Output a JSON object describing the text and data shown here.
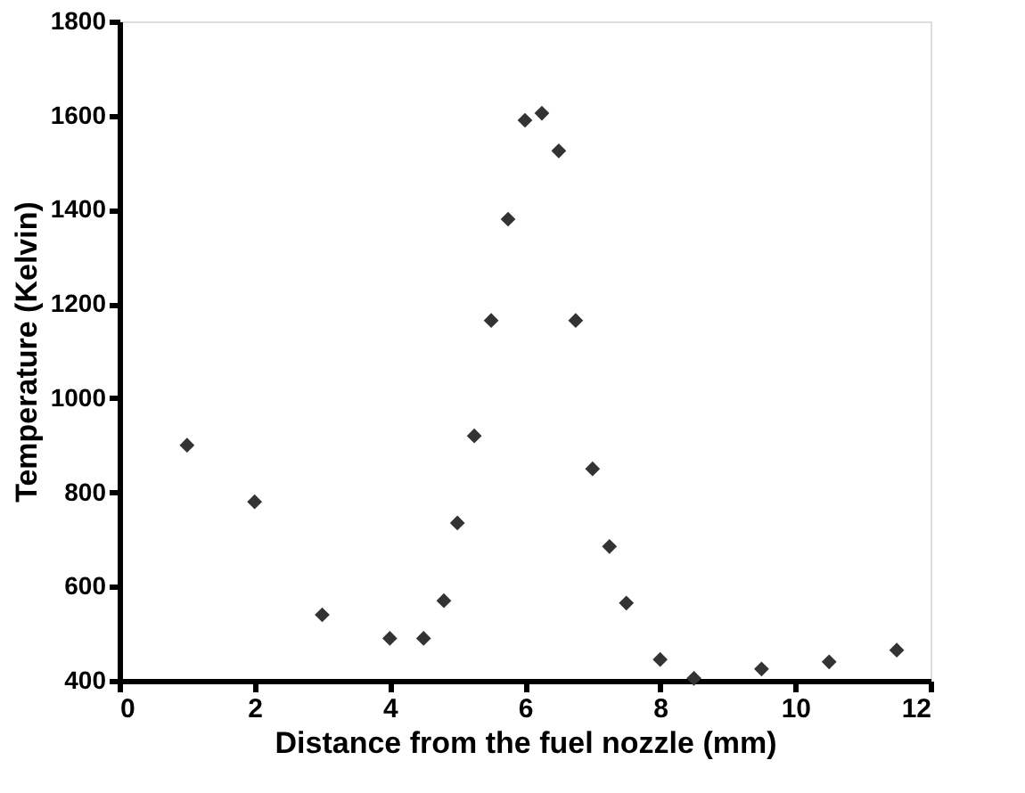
{
  "chart_data": {
    "type": "scatter",
    "xlabel": "Distance from the fuel nozzle (mm)",
    "ylabel": "Temperature (Kelvin)",
    "x": [
      1,
      2,
      3,
      4,
      4.5,
      4.8,
      5,
      5.25,
      5.5,
      5.75,
      6,
      6.25,
      6.5,
      6.75,
      7,
      7.25,
      7.5,
      8,
      8.5,
      9.5,
      10.5,
      11.5
    ],
    "series": [
      {
        "color": "#333333",
        "values": [
          900,
          780,
          540,
          490,
          490,
          570,
          735,
          920,
          1165,
          1380,
          1590,
          1605,
          1525,
          1165,
          850,
          685,
          565,
          445,
          405,
          425,
          440,
          465
        ]
      }
    ],
    "xlim": [
      0,
      12
    ],
    "xticks": [
      0,
      2,
      4,
      6,
      8,
      10,
      12
    ],
    "ylim": [
      400,
      1800
    ],
    "yticks": [
      400,
      600,
      800,
      1000,
      1200,
      1400,
      1600,
      1800
    ],
    "marker": "diamond",
    "grid": false,
    "legend": false
  }
}
